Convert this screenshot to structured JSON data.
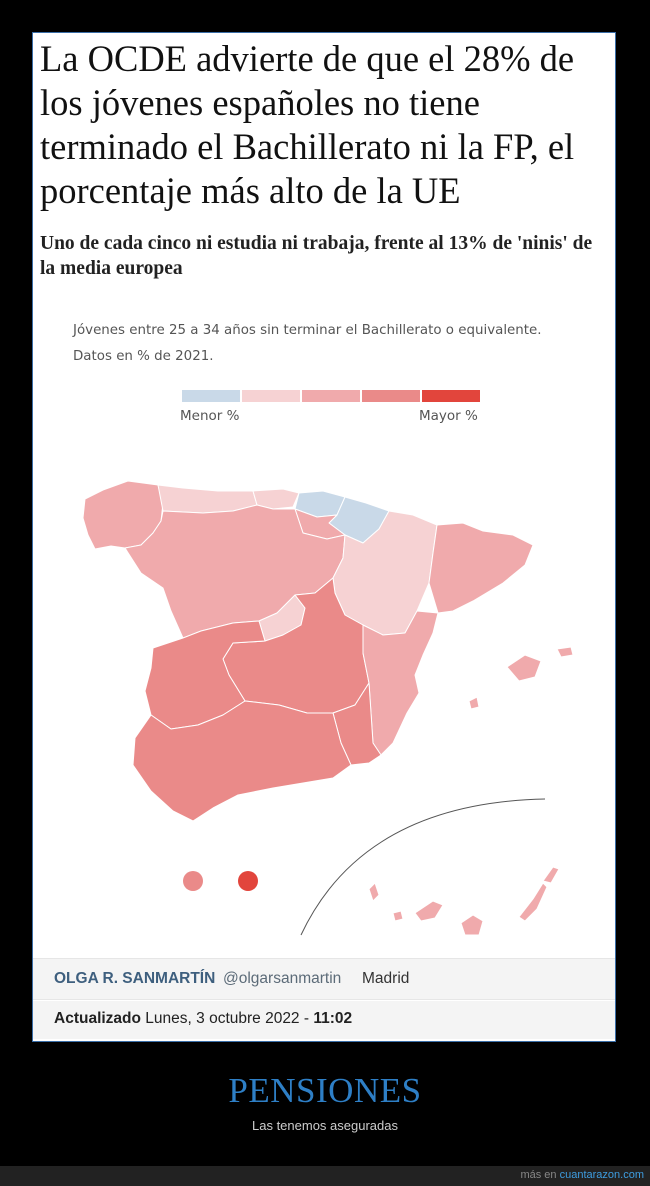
{
  "article": {
    "headline": "La OCDE advierte de que el 28% de los jóvenes españoles no tiene terminado el Bachillerato ni la FP, el porcentaje más alto de la UE",
    "subtitle": "Uno de cada cinco ni estudia ni trabaja, frente al 13% de 'ninis' de la media europea"
  },
  "chart": {
    "note_line1": "Jóvenes entre 25 a 34 años sin terminar el Bachillerato o equivalente.",
    "note_line2": "Datos en % de 2021.",
    "legend_min": "Menor %",
    "legend_max": "Mayor %",
    "scale_colors": [
      "#c9d9e8",
      "#f6d2d3",
      "#f0aaac",
      "#ea8a89",
      "#e2453c"
    ]
  },
  "byline": {
    "author": "OLGA R. SANMARTÍN",
    "handle": "@olgarsanmartin",
    "city": "Madrid",
    "updated_label": "Actualizado",
    "updated_date": "Lunes, 3 octubre 2022 -",
    "updated_time": "11:02"
  },
  "caption": {
    "title": "PENSIONES",
    "subtitle": "Las tenemos aseguradas"
  },
  "footer": {
    "prefix": "más en",
    "site": "cuantarazon.com"
  }
}
